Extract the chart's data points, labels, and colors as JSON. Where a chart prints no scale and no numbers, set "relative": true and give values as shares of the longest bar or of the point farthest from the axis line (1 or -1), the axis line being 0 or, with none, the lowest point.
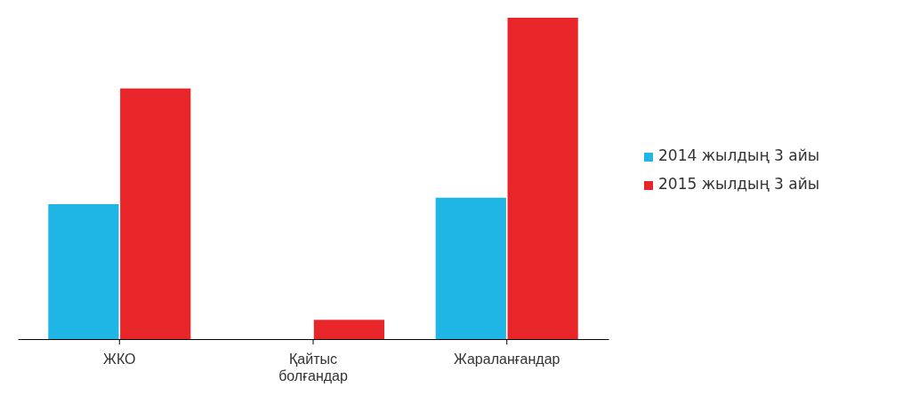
{
  "chart_data": {
    "type": "bar",
    "relative": true,
    "categories": [
      "ЖКО",
      "Қайтыс болғандар",
      "Жараланғандар"
    ],
    "series": [
      {
        "name": "2014 жылдың 3 айы",
        "color": "#1fb6e6",
        "values": [
          0.42,
          0,
          0.44
        ]
      },
      {
        "name": "2015 жылдың 3 айы",
        "color": "#e8262a",
        "values": [
          0.78,
          0.06,
          1
        ]
      }
    ],
    "legend": "right"
  }
}
